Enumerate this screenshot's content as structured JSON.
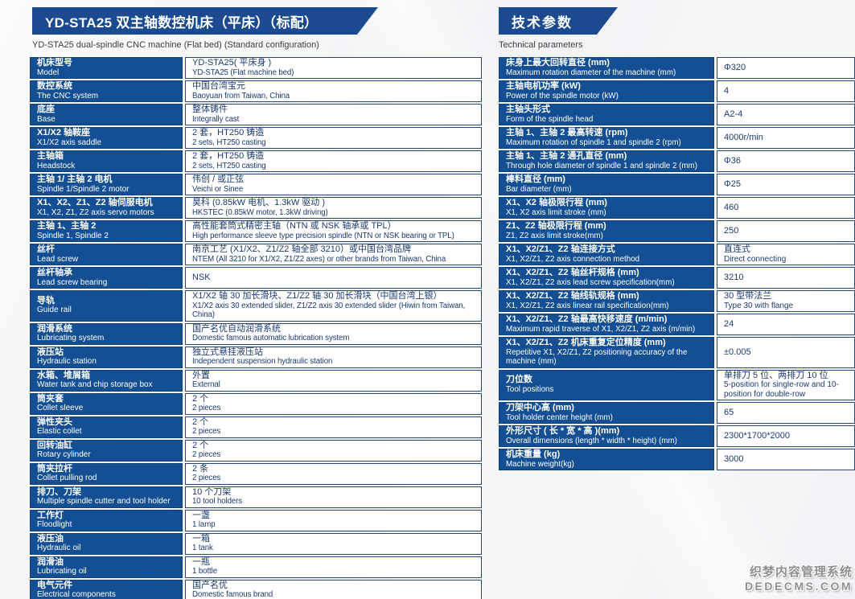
{
  "header": {
    "title": "YD-STA25 双主轴数控机床（平床）（标配）",
    "subtitle": "YD-STA25 dual-spindle CNC machine (Flat bed) (Standard configuration)"
  },
  "params_header": {
    "title": "技术参数",
    "subtitle": "Technical parameters"
  },
  "colors": {
    "banner_bg": "#1b4a8e",
    "label_bg": "#134f92",
    "value_text": "#1c3a6e",
    "cell_border": "#2a486e",
    "page_bg": "#f3f4f6"
  },
  "left_table": {
    "rows": [
      {
        "label_zh": "机床型号",
        "label_en": "Model",
        "value_zh": "YD-STA25( 平床身 )",
        "value_en": "YD-STA25 (Flat machine bed)"
      },
      {
        "label_zh": "数控系统",
        "label_en": "The CNC system",
        "value_zh": "中国台湾宝元",
        "value_en": "Baoyuan from Taiwan, China"
      },
      {
        "label_zh": "底座",
        "label_en": "Base",
        "value_zh": "整体铸件",
        "value_en": "Integrally cast"
      },
      {
        "label_zh": "X1/X2 轴鞍座",
        "label_en": "X1/X2 axis saddle",
        "value_zh": "2 套，HT250 铸造",
        "value_en": "2 sets, HT250 casting"
      },
      {
        "label_zh": "主轴箱",
        "label_en": "Headstock",
        "value_zh": "2 套，HT250 铸造",
        "value_en": "2 sets, HT250 casting"
      },
      {
        "label_zh": "主轴 1/ 主轴 2 电机",
        "label_en": "Spindle 1/Spindle 2 motor",
        "value_zh": "伟创 / 或正弦",
        "value_en": "Veichi or Sinee"
      },
      {
        "label_zh": "X1、X2、Z1、Z2 轴伺服电机",
        "label_en": "X1, X2, Z1, Z2 axis servo motors",
        "value_zh": "昊科 (0.85kW 电机、1.3kW 驱动 )",
        "value_en": "HKSTEC (0.85kW motor, 1.3kW driving)"
      },
      {
        "label_zh": "主轴 1、主轴 2",
        "label_en": "Spindle 1, Spindle 2",
        "value_zh": "高性能套筒式精密主轴（NTN 或 NSK 轴承或 TPL）",
        "value_en": "High performance sleeve type precision spindle (NTN or NSK bearing or TPL)"
      },
      {
        "label_zh": "丝杆",
        "label_en": "Lead screw",
        "value_zh": "南京工艺 (X1/X2、Z1/Z2 轴全部 3210）或中国台湾品牌",
        "value_en": "NTEM (All 3210 for X1/X2, Z1/Z2 axes) or other brands from Taiwan, China"
      },
      {
        "label_zh": "丝杆轴承",
        "label_en": "Lead screw bearing",
        "value_zh": "NSK",
        "value_en": ""
      },
      {
        "label_zh": "导轨",
        "label_en": "Guide rail",
        "value_zh": "X1/X2 轴 30 加长滑块、Z1/Z2 轴 30 加长滑块（中国台湾上银）",
        "value_en": "X1/X2 axis 30 extended slider, Z1/Z2 axis 30 extended slider (Hiwin from Taiwan, China)"
      },
      {
        "label_zh": "润滑系统",
        "label_en": "Lubricating system",
        "value_zh": "国产名优自动润滑系统",
        "value_en": "Domestic famous automatic lubrication system"
      },
      {
        "label_zh": "液压站",
        "label_en": "Hydraulic station",
        "value_zh": "独立式悬挂液压站",
        "value_en": "Independent suspension hydraulic station"
      },
      {
        "label_zh": "水箱、堆屑箱",
        "label_en": "Water tank and chip storage box",
        "value_zh": "外置",
        "value_en": "External"
      },
      {
        "label_zh": "筒夹套",
        "label_en": "Collet sleeve",
        "value_zh": "2 个",
        "value_en": "2 pieces"
      },
      {
        "label_zh": "弹性夹头",
        "label_en": "Elastic collet",
        "value_zh": "2 个",
        "value_en": "2 pieces"
      },
      {
        "label_zh": "回转油缸",
        "label_en": "Rotary cylinder",
        "value_zh": "2 个",
        "value_en": "2 pieces"
      },
      {
        "label_zh": "筒夹拉杆",
        "label_en": "Collet pulling rod",
        "value_zh": "2 条",
        "value_en": "2 pieces"
      },
      {
        "label_zh": "排刀、刀架",
        "label_en": "Multiple spindle cutter and tool holder",
        "value_zh": "10 个刀架",
        "value_en": "10 tool holders"
      },
      {
        "label_zh": "工作灯",
        "label_en": "Floodlight",
        "value_zh": "一盏",
        "value_en": "1 lamp"
      },
      {
        "label_zh": "液压油",
        "label_en": "Hydraulic oil",
        "value_zh": "一箱",
        "value_en": "1 tank"
      },
      {
        "label_zh": "润滑油",
        "label_en": "Lubricating oil",
        "value_zh": "一瓶",
        "value_en": "1 bottle"
      },
      {
        "label_zh": "电气元件",
        "label_en": "Electrical components",
        "value_zh": "国产名优",
        "value_en": "Domestic famous brand"
      }
    ]
  },
  "right_table": {
    "rows": [
      {
        "label_zh": "床身上最大回转直径 (mm)",
        "label_en": "Maximum rotation diameter of the machine (mm)",
        "value_zh": "Φ320",
        "value_en": ""
      },
      {
        "label_zh": "主轴电机功率 (kW)",
        "label_en": "Power of the spindle motor (kW)",
        "value_zh": "4",
        "value_en": ""
      },
      {
        "label_zh": "主轴头形式",
        "label_en": "Form of the spindle head",
        "value_zh": "A2-4",
        "value_en": ""
      },
      {
        "label_zh": "主轴 1、主轴 2 最高转速 (rpm)",
        "label_en": "Maximum rotation of spindle 1 and spindle 2 (rpm)",
        "value_zh": "4000r/min",
        "value_en": ""
      },
      {
        "label_zh": "主轴 1、主轴 2 通孔直径 (mm)",
        "label_en": "Through hole diameter of spindle 1 and spindle 2 (mm)",
        "value_zh": "Φ36",
        "value_en": ""
      },
      {
        "label_zh": "棒料直径 (mm)",
        "label_en": "Bar diameter (mm)",
        "value_zh": "Φ25",
        "value_en": ""
      },
      {
        "label_zh": "X1、X2 轴极限行程 (mm)",
        "label_en": "X1, X2 axis limit stroke (mm)",
        "value_zh": "460",
        "value_en": ""
      },
      {
        "label_zh": "Z1、Z2 轴极限行程 (mm)",
        "label_en": "Z1, Z2 axis limit stroke(mm)",
        "value_zh": "250",
        "value_en": ""
      },
      {
        "label_zh": "X1、X2/Z1、Z2 轴连接方式",
        "label_en": "X1, X2/Z1, Z2 axis connection method",
        "value_zh": "直连式",
        "value_en": "Direct connecting"
      },
      {
        "label_zh": "X1、X2/Z1、Z2 轴丝杆规格 (mm)",
        "label_en": "X1, X2/Z1, Z2 axis lead screw specification(mm)",
        "value_zh": "3210",
        "value_en": ""
      },
      {
        "label_zh": "X1、X2/Z1、Z2 轴线轨规格 (mm)",
        "label_en": "X1, X2/Z1, Z2 axis linear rail specification(mm)",
        "value_zh": "30 型带法兰",
        "value_en": "Type 30 with flange"
      },
      {
        "label_zh": "X1、X2/Z1、Z2 轴最高快移速度 (m/min)",
        "label_en": "Maximum rapid traverse of X1, X2/Z1, Z2 axis (m/min)",
        "value_zh": "24",
        "value_en": ""
      },
      {
        "label_zh": "X1、X2/Z1、Z2 机床重复定位精度 (mm)",
        "label_en": "Repetitive X1, X2/Z1, Z2 positioning accuracy of the machine (mm)",
        "value_zh": "±0.005",
        "value_en": ""
      },
      {
        "label_zh": "刀位数",
        "label_en": "Tool positions",
        "value_zh": "单排刀 5 位、两排刀 10 位",
        "value_en": "5-position for single-row and 10-position for double-row"
      },
      {
        "label_zh": "刀架中心高 (mm)",
        "label_en": "Tool holder center height (mm)",
        "value_zh": "65",
        "value_en": ""
      },
      {
        "label_zh": "外形尺寸 ( 长 * 宽 * 高 )(mm)",
        "label_en": "Overall dimensions (length * width * height) (mm)",
        "value_zh": "2300*1700*2000",
        "value_en": ""
      },
      {
        "label_zh": "机床重量 (kg)",
        "label_en": "Machine weight(kg)",
        "value_zh": "3000",
        "value_en": ""
      }
    ]
  },
  "watermark": {
    "line1": "织梦内容管理系统",
    "line2": "DEDECMS.COM"
  }
}
